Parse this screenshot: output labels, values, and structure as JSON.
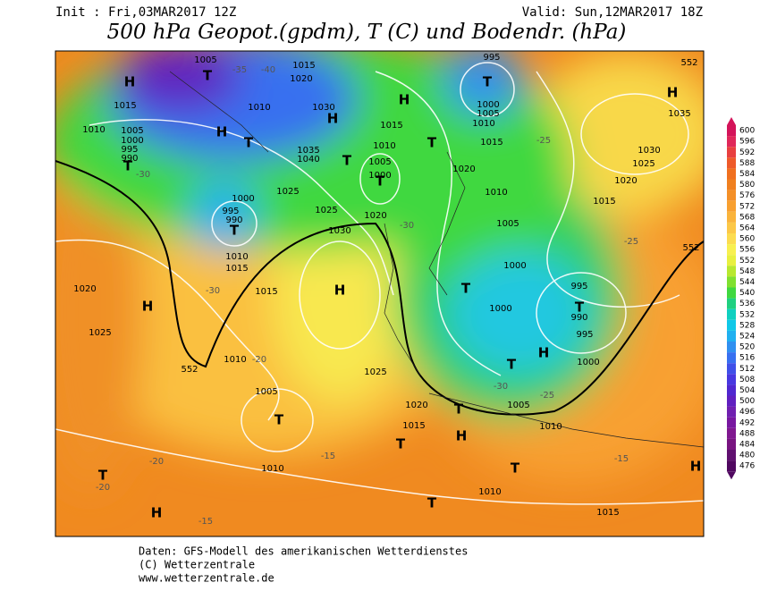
{
  "header": {
    "init": "Init : Fri,03MAR2017 12Z",
    "valid": "Valid: Sun,12MAR2017 18Z",
    "title": "500 hPa Geopot.(gpdm), T (C) und Bodendr. (hPa)"
  },
  "colorbar": {
    "ticks": [
      600,
      596,
      592,
      588,
      584,
      580,
      576,
      572,
      568,
      564,
      560,
      556,
      552,
      548,
      544,
      540,
      536,
      532,
      528,
      524,
      520,
      516,
      512,
      508,
      504,
      500,
      496,
      492,
      488,
      484,
      480,
      476
    ],
    "colors": [
      "#d4145a",
      "#e0285a",
      "#e84040",
      "#ee5a2a",
      "#f07020",
      "#f08020",
      "#f49028",
      "#f8a030",
      "#fab43c",
      "#fcc848",
      "#fcdc50",
      "#f8f050",
      "#e8f040",
      "#b8e830",
      "#80e030",
      "#40d840",
      "#20d080",
      "#10d0c0",
      "#10c8e8",
      "#20b0f0",
      "#3090f0",
      "#3870f0",
      "#4050e8",
      "#4838e0",
      "#5028d0",
      "#6020c0",
      "#7020b0",
      "#7818a0",
      "#801890",
      "#781480",
      "#601070",
      "#500860"
    ]
  },
  "map_labels": [
    "H",
    "T",
    "1005",
    "1015",
    "1010",
    "1005",
    "1000",
    "995",
    "990",
    "T",
    "H",
    "T",
    "1010",
    "1015",
    "1020",
    "1030",
    "H",
    "1035",
    "1040",
    "T",
    "1010",
    "1005",
    "1000",
    "T",
    "1025",
    "995",
    "990",
    "T",
    "1000",
    "1010",
    "1015",
    "1025",
    "1030",
    "1020",
    "H",
    "1015",
    "H",
    "1020",
    "1025",
    "1010",
    "1025",
    "1005",
    "T",
    "1010",
    "T",
    "H",
    "995",
    "T",
    "1000",
    "1005",
    "1010",
    "1015",
    "H",
    "1015",
    "T",
    "1020",
    "1010",
    "1005",
    "1015",
    "1020",
    "H",
    "1035",
    "1030",
    "1025",
    "1000",
    "T",
    "1000",
    "995",
    "T",
    "990",
    "995",
    "1000",
    "H",
    "T",
    "1005",
    "T",
    "H",
    "1020",
    "1015",
    "T",
    "1010",
    "T",
    "1010",
    "T",
    "1015",
    "H",
    "552",
    "552",
    "552",
    "-35",
    "-40",
    "-30",
    "-30",
    "-30",
    "-25",
    "-25",
    "-20",
    "-20",
    "-15",
    "-20",
    "-15",
    "-30",
    "-25",
    "-15"
  ],
  "footer": [
    "Daten: GFS-Modell des amerikanischen Wetterdienstes",
    "(C) Wetterzentrale",
    "www.wetterzentrale.de"
  ]
}
